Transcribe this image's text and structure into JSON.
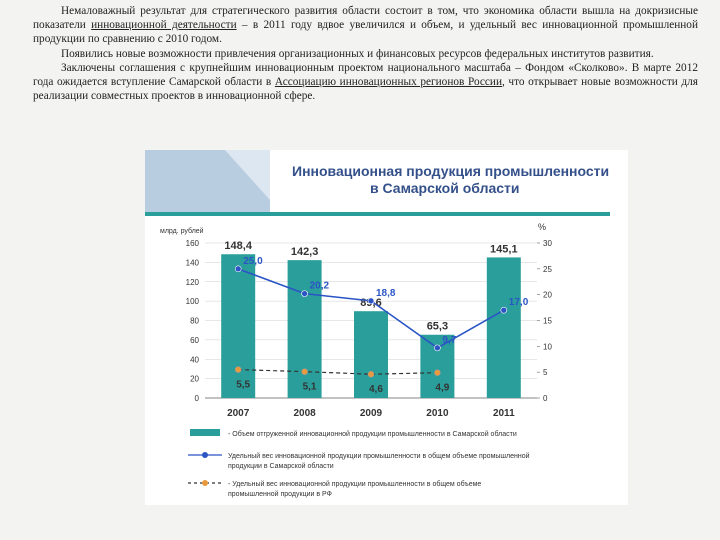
{
  "paragraphs": [
    {
      "segments": [
        {
          "text": "Немаловажный результат для стратегического развития области состоит в том, что экономика области вышла на докризисные показатели "
        },
        {
          "text": "инновационной деятельности",
          "underline": true
        },
        {
          "text": " – в 2011 году вдвое увеличился и объем, и удельный вес инновационной промышленной продукции по сравнению с 2010 годом."
        }
      ]
    },
    {
      "segments": [
        {
          "text": "Появились новые возможности привлечения организационных и финансовых ресурсов федеральных институтов развития."
        }
      ]
    },
    {
      "segments": [
        {
          "text": "Заключены соглашения с крупнейшим инновационным проектом национального масштаба – Фондом «Сколково». В марте 2012 года ожидается вступление Самарской области в "
        },
        {
          "text": "Ассоциацию инновационных регионов России",
          "underline": true
        },
        {
          "text": ", что открывает новые возможности для реализации совместных проектов в инновационной сфере."
        }
      ]
    }
  ],
  "chart_data": {
    "type": "bar",
    "title": "Инновационная продукция промышленности в Самарской области",
    "ylabel": "млрд. рублей",
    "y2label": "%",
    "categories": [
      "2007",
      "2008",
      "2009",
      "2010",
      "2011"
    ],
    "ylim": [
      0,
      160
    ],
    "yticks": [
      0,
      20,
      40,
      60,
      80,
      100,
      120,
      140,
      160
    ],
    "y2lim": [
      0,
      30
    ],
    "y2ticks": [
      0,
      5,
      10,
      15,
      20,
      25,
      30
    ],
    "series": [
      {
        "name": "- Объем отгруженной инновационной продукции промышленности в Самарской области",
        "type": "bar",
        "color": "#2a9e9b",
        "values": [
          148.4,
          142.3,
          89.6,
          65.3,
          145.1
        ],
        "value_labels": [
          "148,4",
          "142,3",
          "89,6",
          "65,3",
          "145,1"
        ]
      },
      {
        "name": "Удельный вес инновационной продукции промышленности в общем объеме промышленной продукции в Самарской области",
        "type": "line",
        "axis": "y2",
        "color": "#2b55c5",
        "values": [
          25.0,
          20.2,
          18.8,
          9.7,
          17.0
        ],
        "value_labels": [
          "25,0",
          "20,2",
          "18,8",
          "9,7",
          "17,0"
        ]
      },
      {
        "name": "- Удельный вес инновационной продукции промышленности в общем объеме промышленной продукции в РФ",
        "type": "dashed",
        "axis": "y2",
        "color": "#e89a3c",
        "values": [
          5.5,
          5.1,
          4.6,
          4.9,
          null
        ],
        "value_labels": [
          "5,5",
          "5,1",
          "4,6",
          "4,9",
          null
        ]
      }
    ]
  }
}
